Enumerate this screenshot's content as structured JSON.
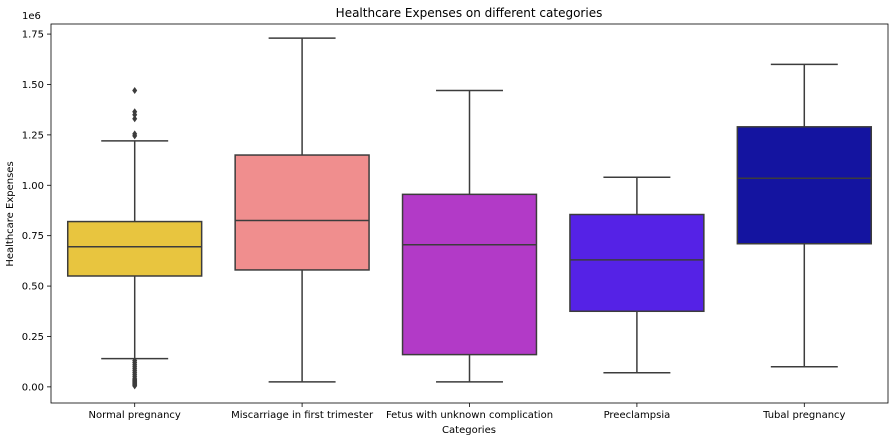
{
  "chart_data": {
    "type": "box",
    "title": "Healthcare Expenses on different categories",
    "xlabel": "Categories",
    "ylabel": "Healthcare Expenses",
    "y_offset_label": "1e6",
    "ylim": [
      -0.08,
      1.8
    ],
    "y_ticks": [
      0.0,
      0.25,
      0.5,
      0.75,
      1.0,
      1.25,
      1.5,
      1.75
    ],
    "y_tick_labels": [
      "0.00",
      "0.25",
      "0.50",
      "0.75",
      "1.00",
      "1.25",
      "1.50",
      "1.75"
    ],
    "categories": [
      "Normal pregnancy",
      "Miscarriage in first trimester",
      "Fetus with unknown complication",
      "Preeclampsia",
      "Tubal pregnancy"
    ],
    "colors": [
      "#e8c53f",
      "#f08e8e",
      "#b23ac7",
      "#5522e6",
      "#1414a0"
    ],
    "boxes": [
      {
        "whisker_low": 0.14,
        "q1": 0.55,
        "median": 0.695,
        "q3": 0.82,
        "whisker_high": 1.22,
        "outliers": [
          1.47,
          1.365,
          1.35,
          1.33,
          1.255,
          1.245,
          0.13,
          0.12,
          0.11,
          0.1,
          0.09,
          0.08,
          0.07,
          0.06,
          0.05,
          0.04,
          0.035,
          0.03,
          0.025,
          0.02,
          0.015,
          0.01,
          0.005
        ]
      },
      {
        "whisker_low": 0.025,
        "q1": 0.58,
        "median": 0.825,
        "q3": 1.15,
        "whisker_high": 1.73,
        "outliers": []
      },
      {
        "whisker_low": 0.025,
        "q1": 0.16,
        "median": 0.705,
        "q3": 0.955,
        "whisker_high": 1.47,
        "outliers": []
      },
      {
        "whisker_low": 0.07,
        "q1": 0.375,
        "median": 0.63,
        "q3": 0.855,
        "whisker_high": 1.04,
        "outliers": []
      },
      {
        "whisker_low": 0.1,
        "q1": 0.71,
        "median": 1.035,
        "q3": 1.29,
        "whisker_high": 1.6,
        "outliers": []
      }
    ]
  }
}
